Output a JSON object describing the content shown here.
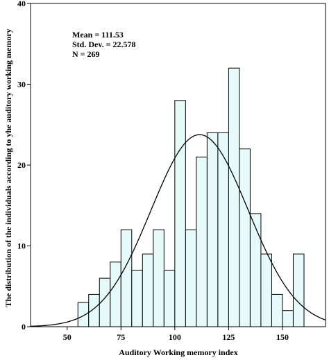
{
  "chart_data": {
    "type": "bar",
    "subtype": "histogram",
    "bin_width": 5,
    "bins": [
      {
        "start": 55,
        "end": 60,
        "value": 3
      },
      {
        "start": 60,
        "end": 65,
        "value": 4
      },
      {
        "start": 65,
        "end": 70,
        "value": 6
      },
      {
        "start": 70,
        "end": 75,
        "value": 8
      },
      {
        "start": 75,
        "end": 80,
        "value": 12
      },
      {
        "start": 80,
        "end": 85,
        "value": 7
      },
      {
        "start": 85,
        "end": 90,
        "value": 9
      },
      {
        "start": 90,
        "end": 95,
        "value": 12
      },
      {
        "start": 95,
        "end": 100,
        "value": 7
      },
      {
        "start": 100,
        "end": 105,
        "value": 28
      },
      {
        "start": 105,
        "end": 110,
        "value": 12
      },
      {
        "start": 110,
        "end": 115,
        "value": 21
      },
      {
        "start": 115,
        "end": 120,
        "value": 24
      },
      {
        "start": 120,
        "end": 125,
        "value": 24
      },
      {
        "start": 125,
        "end": 130,
        "value": 32
      },
      {
        "start": 130,
        "end": 135,
        "value": 22
      },
      {
        "start": 135,
        "end": 140,
        "value": 14
      },
      {
        "start": 140,
        "end": 145,
        "value": 9
      },
      {
        "start": 145,
        "end": 150,
        "value": 4
      },
      {
        "start": 150,
        "end": 155,
        "value": 2
      },
      {
        "start": 155,
        "end": 160,
        "value": 9
      }
    ],
    "normal_curve": {
      "mean": 111.53,
      "sd": 22.578,
      "n": 269,
      "shown": true
    },
    "xlabel": "Auditory Working memory index",
    "ylabel": "The distribution of the individuals according to yhe auditory working memory",
    "xlim": [
      33,
      170
    ],
    "ylim": [
      0,
      40
    ],
    "xticks": [
      "50",
      "75",
      "100",
      "125",
      "150"
    ],
    "yticks": [
      "0",
      "10",
      "20",
      "30",
      "40"
    ],
    "stats": [
      "Mean = 111.53",
      "Std. Dev. = 22.578",
      "N = 269"
    ],
    "grid": false,
    "bar_fill": "#e6fafa",
    "bar_stroke": "#000000",
    "curve_color": "#000000"
  }
}
